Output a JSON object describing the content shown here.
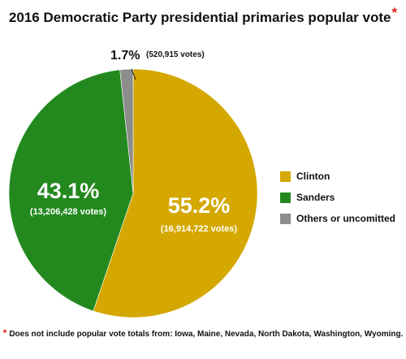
{
  "chart_data": {
    "type": "pie",
    "title": "2016 Democratic Party presidential primaries popular vote",
    "title_marker": "*",
    "slices": [
      {
        "label": "Clinton",
        "percent_label": "55.2%",
        "votes_label": "(16,914,722 votes)",
        "value": 55.2,
        "votes": 16914722,
        "color": "#d4a800"
      },
      {
        "label": "Sanders",
        "percent_label": "43.1%",
        "votes_label": "(13,206,428 votes)",
        "value": 43.1,
        "votes": 13206428,
        "color": "#23891f"
      },
      {
        "label": "Others or uncomitted",
        "percent_label": "1.7%",
        "votes_label": "(520,915 votes)",
        "value": 1.7,
        "votes": 520915,
        "color": "#8c8c8c"
      }
    ],
    "legend_position": "right"
  },
  "footnote": {
    "marker": "*",
    "text": "Does not include popular vote totals from: Iowa, Maine, Nevada, North Dakota, Washington, Wyoming."
  }
}
